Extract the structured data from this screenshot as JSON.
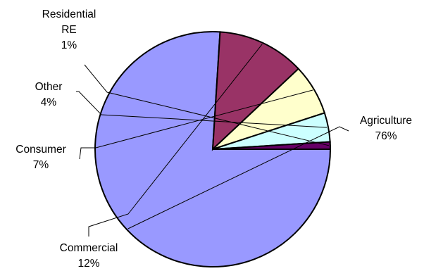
{
  "chart_data": {
    "type": "pie",
    "title": "",
    "categories": [
      "Agriculture",
      "Commercial",
      "Consumer",
      "Other",
      "Residential RE"
    ],
    "values": [
      76,
      12,
      7,
      4,
      1
    ],
    "series": [
      {
        "values": [
          76,
          12,
          7,
          4,
          1
        ],
        "colors": [
          "#9999FF",
          "#993366",
          "#FFFFCC",
          "#CCFFFF",
          "#660066"
        ]
      }
    ],
    "data_labels": [
      {
        "category": "Agriculture",
        "lines": [
          "Agriculture",
          "76%"
        ]
      },
      {
        "category": "Commercial",
        "lines": [
          "Commercial",
          "12%"
        ]
      },
      {
        "category": "Consumer",
        "lines": [
          "Consumer",
          "7%"
        ]
      },
      {
        "category": "Other",
        "lines": [
          "Other",
          "4%"
        ]
      },
      {
        "category": "Residential RE",
        "lines": [
          "Residential",
          "RE",
          "1%"
        ]
      }
    ],
    "start_angle_deg": 0,
    "direction": "clockwise",
    "legend": "none",
    "grid": false
  }
}
